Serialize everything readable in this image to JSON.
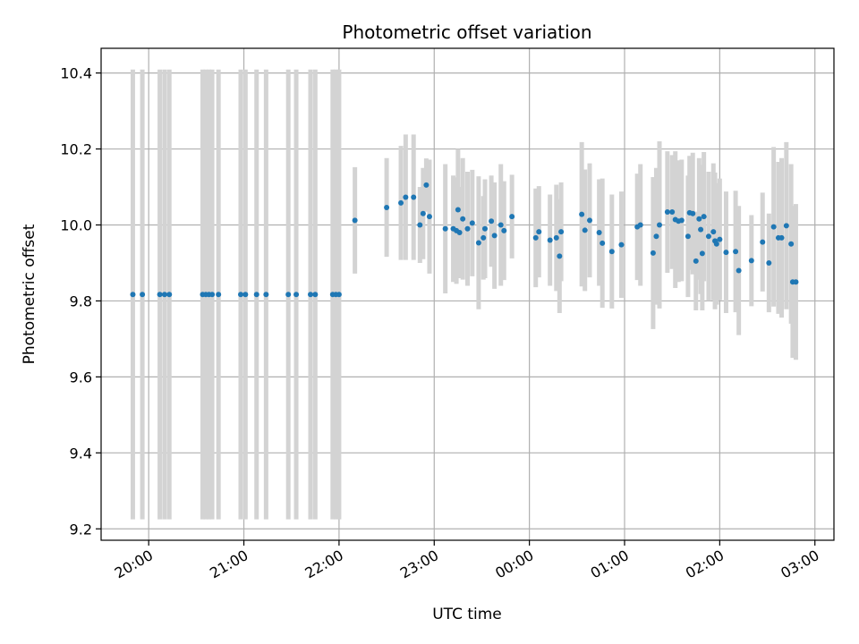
{
  "chart_data": {
    "type": "scatter",
    "title": "Photometric offset variation",
    "xlabel": "UTC time",
    "ylabel": "Photometric offset",
    "x_axis_type": "time",
    "xlim": [
      "19:30",
      "03:12"
    ],
    "ylim": [
      9.17,
      10.465
    ],
    "grid": true,
    "colors": {
      "points": "#1f77b4",
      "errorbars": "#d3d3d3",
      "grid": "#b0b0b0",
      "axes": "#000000"
    },
    "x_ticks": [
      {
        "time": "20:00",
        "label": "20:00"
      },
      {
        "time": "21:00",
        "label": "21:00"
      },
      {
        "time": "22:00",
        "label": "22:00"
      },
      {
        "time": "23:00",
        "label": "23:00"
      },
      {
        "time": "00:00",
        "label": "00:00"
      },
      {
        "time": "01:00",
        "label": "01:00"
      },
      {
        "time": "02:00",
        "label": "02:00"
      },
      {
        "time": "03:00",
        "label": "03:00"
      }
    ],
    "y_ticks": [
      {
        "value": 9.2,
        "label": "9.2"
      },
      {
        "value": 9.4,
        "label": "9.4"
      },
      {
        "value": 9.6,
        "label": "9.6"
      },
      {
        "value": 9.8,
        "label": "9.8"
      },
      {
        "value": 10.0,
        "label": "10.0"
      },
      {
        "value": 10.2,
        "label": "10.2"
      },
      {
        "value": 10.4,
        "label": "10.4"
      }
    ],
    "points": [
      {
        "t": "19:50",
        "y": 9.817,
        "err": 0.592
      },
      {
        "t": "19:56",
        "y": 9.817,
        "err": 0.592
      },
      {
        "t": "20:07",
        "y": 9.817,
        "err": 0.592
      },
      {
        "t": "20:10",
        "y": 9.817,
        "err": 0.592
      },
      {
        "t": "20:13",
        "y": 9.817,
        "err": 0.592
      },
      {
        "t": "20:34",
        "y": 9.817,
        "err": 0.592
      },
      {
        "t": "20:36",
        "y": 9.817,
        "err": 0.592
      },
      {
        "t": "20:38",
        "y": 9.817,
        "err": 0.592
      },
      {
        "t": "20:40",
        "y": 9.817,
        "err": 0.592
      },
      {
        "t": "20:44",
        "y": 9.817,
        "err": 0.592
      },
      {
        "t": "20:58",
        "y": 9.817,
        "err": 0.592
      },
      {
        "t": "21:01",
        "y": 9.817,
        "err": 0.592
      },
      {
        "t": "21:08",
        "y": 9.817,
        "err": 0.592
      },
      {
        "t": "21:14",
        "y": 9.817,
        "err": 0.592
      },
      {
        "t": "21:28",
        "y": 9.817,
        "err": 0.592
      },
      {
        "t": "21:33",
        "y": 9.817,
        "err": 0.592
      },
      {
        "t": "21:42",
        "y": 9.817,
        "err": 0.592
      },
      {
        "t": "21:45",
        "y": 9.817,
        "err": 0.592
      },
      {
        "t": "21:56",
        "y": 9.817,
        "err": 0.592
      },
      {
        "t": "21:58",
        "y": 9.817,
        "err": 0.592
      },
      {
        "t": "22:00",
        "y": 9.817,
        "err": 0.592
      },
      {
        "t": "22:10",
        "y": 10.012,
        "err": 0.14
      },
      {
        "t": "22:30",
        "y": 10.046,
        "err": 0.13
      },
      {
        "t": "22:39",
        "y": 10.058,
        "err": 0.15
      },
      {
        "t": "22:42",
        "y": 10.073,
        "err": 0.165
      },
      {
        "t": "22:47",
        "y": 10.073,
        "err": 0.165
      },
      {
        "t": "22:51",
        "y": 10.0,
        "err": 0.1
      },
      {
        "t": "22:53",
        "y": 10.03,
        "err": 0.12
      },
      {
        "t": "22:55",
        "y": 10.105,
        "err": 0.07
      },
      {
        "t": "22:57",
        "y": 10.022,
        "err": 0.15
      },
      {
        "t": "23:07",
        "y": 9.99,
        "err": 0.17
      },
      {
        "t": "23:12",
        "y": 9.99,
        "err": 0.14
      },
      {
        "t": "23:14",
        "y": 9.985,
        "err": 0.14
      },
      {
        "t": "23:15",
        "y": 10.04,
        "err": 0.16
      },
      {
        "t": "23:16",
        "y": 9.98,
        "err": 0.12
      },
      {
        "t": "23:18",
        "y": 10.016,
        "err": 0.16
      },
      {
        "t": "23:21",
        "y": 9.99,
        "err": 0.15
      },
      {
        "t": "23:24",
        "y": 10.005,
        "err": 0.14
      },
      {
        "t": "23:28",
        "y": 9.953,
        "err": 0.175
      },
      {
        "t": "23:31",
        "y": 9.966,
        "err": 0.11
      },
      {
        "t": "23:32",
        "y": 9.99,
        "err": 0.13
      },
      {
        "t": "23:36",
        "y": 10.01,
        "err": 0.12
      },
      {
        "t": "23:38",
        "y": 9.972,
        "err": 0.14
      },
      {
        "t": "23:42",
        "y": 10.0,
        "err": 0.16
      },
      {
        "t": "23:44",
        "y": 9.985,
        "err": 0.13
      },
      {
        "t": "23:49",
        "y": 10.022,
        "err": 0.11
      },
      {
        "t": "00:04",
        "y": 9.966,
        "err": 0.13
      },
      {
        "t": "00:06",
        "y": 9.982,
        "err": 0.12
      },
      {
        "t": "00:13",
        "y": 9.96,
        "err": 0.12
      },
      {
        "t": "00:17",
        "y": 9.966,
        "err": 0.14
      },
      {
        "t": "00:19",
        "y": 9.918,
        "err": 0.15
      },
      {
        "t": "00:20",
        "y": 9.982,
        "err": 0.13
      },
      {
        "t": "00:33",
        "y": 10.028,
        "err": 0.19
      },
      {
        "t": "00:35",
        "y": 9.986,
        "err": 0.16
      },
      {
        "t": "00:38",
        "y": 10.012,
        "err": 0.15
      },
      {
        "t": "00:44",
        "y": 9.98,
        "err": 0.14
      },
      {
        "t": "00:46",
        "y": 9.952,
        "err": 0.17
      },
      {
        "t": "00:52",
        "y": 9.93,
        "err": 0.15
      },
      {
        "t": "00:58",
        "y": 9.948,
        "err": 0.14
      },
      {
        "t": "01:08",
        "y": 9.995,
        "err": 0.14
      },
      {
        "t": "01:10",
        "y": 10.0,
        "err": 0.16
      },
      {
        "t": "01:18",
        "y": 9.926,
        "err": 0.2
      },
      {
        "t": "01:20",
        "y": 9.97,
        "err": 0.18
      },
      {
        "t": "01:22",
        "y": 10.0,
        "err": 0.22
      },
      {
        "t": "01:27",
        "y": 10.034,
        "err": 0.16
      },
      {
        "t": "01:30",
        "y": 10.034,
        "err": 0.15
      },
      {
        "t": "01:32",
        "y": 10.014,
        "err": 0.18
      },
      {
        "t": "01:34",
        "y": 10.01,
        "err": 0.16
      },
      {
        "t": "01:36",
        "y": 10.012,
        "err": 0.16
      },
      {
        "t": "01:40",
        "y": 9.97,
        "err": 0.16
      },
      {
        "t": "01:41",
        "y": 10.032,
        "err": 0.15
      },
      {
        "t": "01:43",
        "y": 10.03,
        "err": 0.16
      },
      {
        "t": "01:45",
        "y": 9.905,
        "err": 0.13
      },
      {
        "t": "01:47",
        "y": 10.016,
        "err": 0.16
      },
      {
        "t": "01:48",
        "y": 9.988,
        "err": 0.17
      },
      {
        "t": "01:49",
        "y": 9.925,
        "err": 0.15
      },
      {
        "t": "01:50",
        "y": 10.022,
        "err": 0.17
      },
      {
        "t": "01:53",
        "y": 9.97,
        "err": 0.17
      },
      {
        "t": "01:56",
        "y": 9.982,
        "err": 0.18
      },
      {
        "t": "01:57",
        "y": 9.958,
        "err": 0.18
      },
      {
        "t": "01:58",
        "y": 9.95,
        "err": 0.16
      },
      {
        "t": "02:00",
        "y": 9.962,
        "err": 0.16
      },
      {
        "t": "02:04",
        "y": 9.928,
        "err": 0.16
      },
      {
        "t": "02:10",
        "y": 9.93,
        "err": 0.16
      },
      {
        "t": "02:12",
        "y": 9.88,
        "err": 0.17
      },
      {
        "t": "02:20",
        "y": 9.906,
        "err": 0.12
      },
      {
        "t": "02:27",
        "y": 9.955,
        "err": 0.13
      },
      {
        "t": "02:31",
        "y": 9.9,
        "err": 0.13
      },
      {
        "t": "02:34",
        "y": 9.995,
        "err": 0.21
      },
      {
        "t": "02:37",
        "y": 9.966,
        "err": 0.2
      },
      {
        "t": "02:39",
        "y": 9.966,
        "err": 0.21
      },
      {
        "t": "02:42",
        "y": 9.998,
        "err": 0.22
      },
      {
        "t": "02:45",
        "y": 9.95,
        "err": 0.21
      },
      {
        "t": "02:46",
        "y": 9.85,
        "err": 0.2
      },
      {
        "t": "02:48",
        "y": 9.85,
        "err": 0.205
      }
    ]
  }
}
